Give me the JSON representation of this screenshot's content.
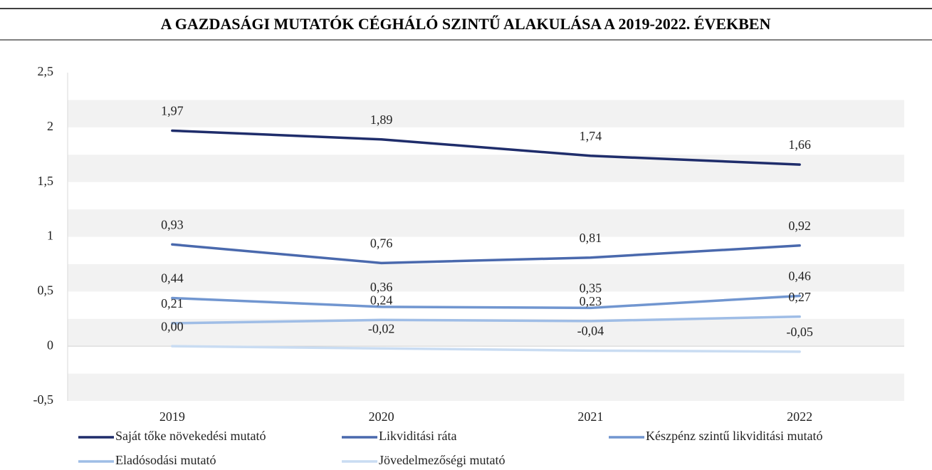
{
  "chart_data": {
    "type": "line",
    "title": "A GAZDASÁGI MUTATÓK CÉGHÁLÓ SZINTŰ ALAKULÁSA A 2019-2022. ÉVEKBEN",
    "categories": [
      "2019",
      "2020",
      "2021",
      "2022"
    ],
    "series": [
      {
        "name": "Saját tőke növekedési mutató",
        "color": "#1f2d6b",
        "values": [
          1.97,
          1.89,
          1.74,
          1.66
        ],
        "value_labels": [
          "1,97",
          "1,89",
          "1,74",
          "1,66"
        ]
      },
      {
        "name": "Likviditási ráta",
        "color": "#4a69ad",
        "values": [
          0.93,
          0.76,
          0.81,
          0.92
        ],
        "value_labels": [
          "0,93",
          "0,76",
          "0,81",
          "0,92"
        ]
      },
      {
        "name": "Készpénz szintű likviditási mutató",
        "color": "#7196d0",
        "values": [
          0.44,
          0.36,
          0.35,
          0.46
        ],
        "value_labels": [
          "0,44",
          "0,36",
          "0,35",
          "0,46"
        ]
      },
      {
        "name": "Eladósodási mutató",
        "color": "#9fbde6",
        "values": [
          0.21,
          0.24,
          0.23,
          0.27
        ],
        "value_labels": [
          "0,21",
          "0,24",
          "0,23",
          "0,27"
        ]
      },
      {
        "name": "Jövedelmezőségi mutató",
        "color": "#c9dcf2",
        "values": [
          0.0,
          -0.02,
          -0.04,
          -0.05
        ],
        "value_labels": [
          "0,00",
          "-0,02",
          "-0,04",
          "-0,05"
        ]
      }
    ],
    "ylim": [
      -0.5,
      2.5
    ],
    "yticks": [
      {
        "value": -0.5,
        "label": "-0,5"
      },
      0,
      {
        "value": 0.5,
        "label": "0,5"
      },
      1,
      {
        "value": 1.5,
        "label": "1,5"
      },
      2,
      {
        "value": 2.5,
        "label": "2,5"
      }
    ],
    "legend": "bottom"
  }
}
